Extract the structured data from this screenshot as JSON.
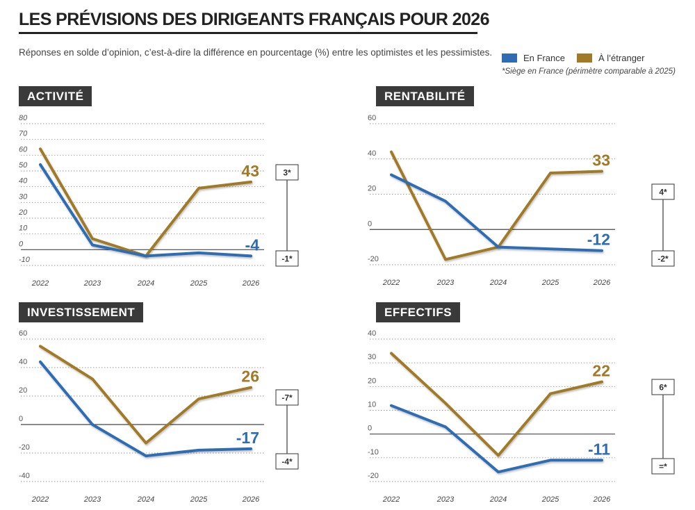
{
  "title": "LES PRÉVISIONS DES DIRIGEANTS FRANÇAIS  POUR 2026",
  "subtitle": "Réponses en solde d’opinion, c’est-à-dire la différence en pourcentage (%) entre les optimistes et les pessimistes.",
  "legend": {
    "france": "En France",
    "etranger": "À l’étranger"
  },
  "footnote": "*Siège en France (périmètre comparable à 2025)",
  "colors": {
    "france": "#2f6db3",
    "etranger": "#a07a26",
    "label_bg": "#3a3a3a"
  },
  "chart_data": [
    {
      "type": "line",
      "title": "ACTIVITÉ",
      "x": [
        "2022",
        "2023",
        "2024",
        "2025",
        "2026"
      ],
      "ylim": [
        -10,
        80
      ],
      "yticks": [
        "80",
        "70",
        "60",
        "50",
        "40",
        "30",
        "20",
        "10",
        "0",
        "-10"
      ],
      "grid": true,
      "series": [
        {
          "name": "En France",
          "values": [
            54,
            3,
            -4,
            -2,
            -4
          ]
        },
        {
          "name": "À l’étranger",
          "values": [
            64,
            7,
            -4,
            39,
            43
          ]
        }
      ],
      "end_labels": {
        "france": "-4",
        "etranger": "43"
      },
      "change_labels": {
        "etranger": "3*",
        "france": "-1*"
      }
    },
    {
      "type": "line",
      "title": "RENTABILITÉ",
      "x": [
        "2022",
        "2023",
        "2024",
        "2025",
        "2026"
      ],
      "ylim": [
        -20,
        60
      ],
      "yticks": [
        "60",
        "40",
        "20",
        "0",
        "-20"
      ],
      "grid": true,
      "series": [
        {
          "name": "En France",
          "values": [
            31,
            16,
            -10,
            -11,
            -12
          ]
        },
        {
          "name": "À l’étranger",
          "values": [
            44,
            -17,
            -10,
            32,
            33
          ]
        }
      ],
      "end_labels": {
        "france": "-12",
        "etranger": "33"
      },
      "change_labels": {
        "etranger": "4*",
        "france": "-2*"
      }
    },
    {
      "type": "line",
      "title": "INVESTISSEMENT",
      "x": [
        "2022",
        "2023",
        "2024",
        "2025",
        "2026"
      ],
      "ylim": [
        -40,
        60
      ],
      "yticks": [
        "60",
        "40",
        "20",
        "0",
        "-20",
        "-40"
      ],
      "grid": true,
      "series": [
        {
          "name": "En France",
          "values": [
            44,
            0,
            -22,
            -18,
            -17
          ]
        },
        {
          "name": "À l’étranger",
          "values": [
            55,
            32,
            -13,
            18,
            26
          ]
        }
      ],
      "end_labels": {
        "france": "-17",
        "etranger": "26"
      },
      "change_labels": {
        "etranger": "-7*",
        "france": "-4*"
      }
    },
    {
      "type": "line",
      "title": "EFFECTIFS",
      "x": [
        "2022",
        "2023",
        "2024",
        "2025",
        "2026"
      ],
      "ylim": [
        -20,
        40
      ],
      "yticks": [
        "40",
        "30",
        "20",
        "10",
        "0",
        "-10",
        "-20"
      ],
      "grid": true,
      "series": [
        {
          "name": "En France",
          "values": [
            12,
            3,
            -16,
            -11,
            -11
          ]
        },
        {
          "name": "À l’étranger",
          "values": [
            34,
            13,
            -9,
            17,
            22
          ]
        }
      ],
      "end_labels": {
        "france": "-11",
        "etranger": "22"
      },
      "change_labels": {
        "etranger": "6*",
        "france": "=*"
      }
    }
  ]
}
